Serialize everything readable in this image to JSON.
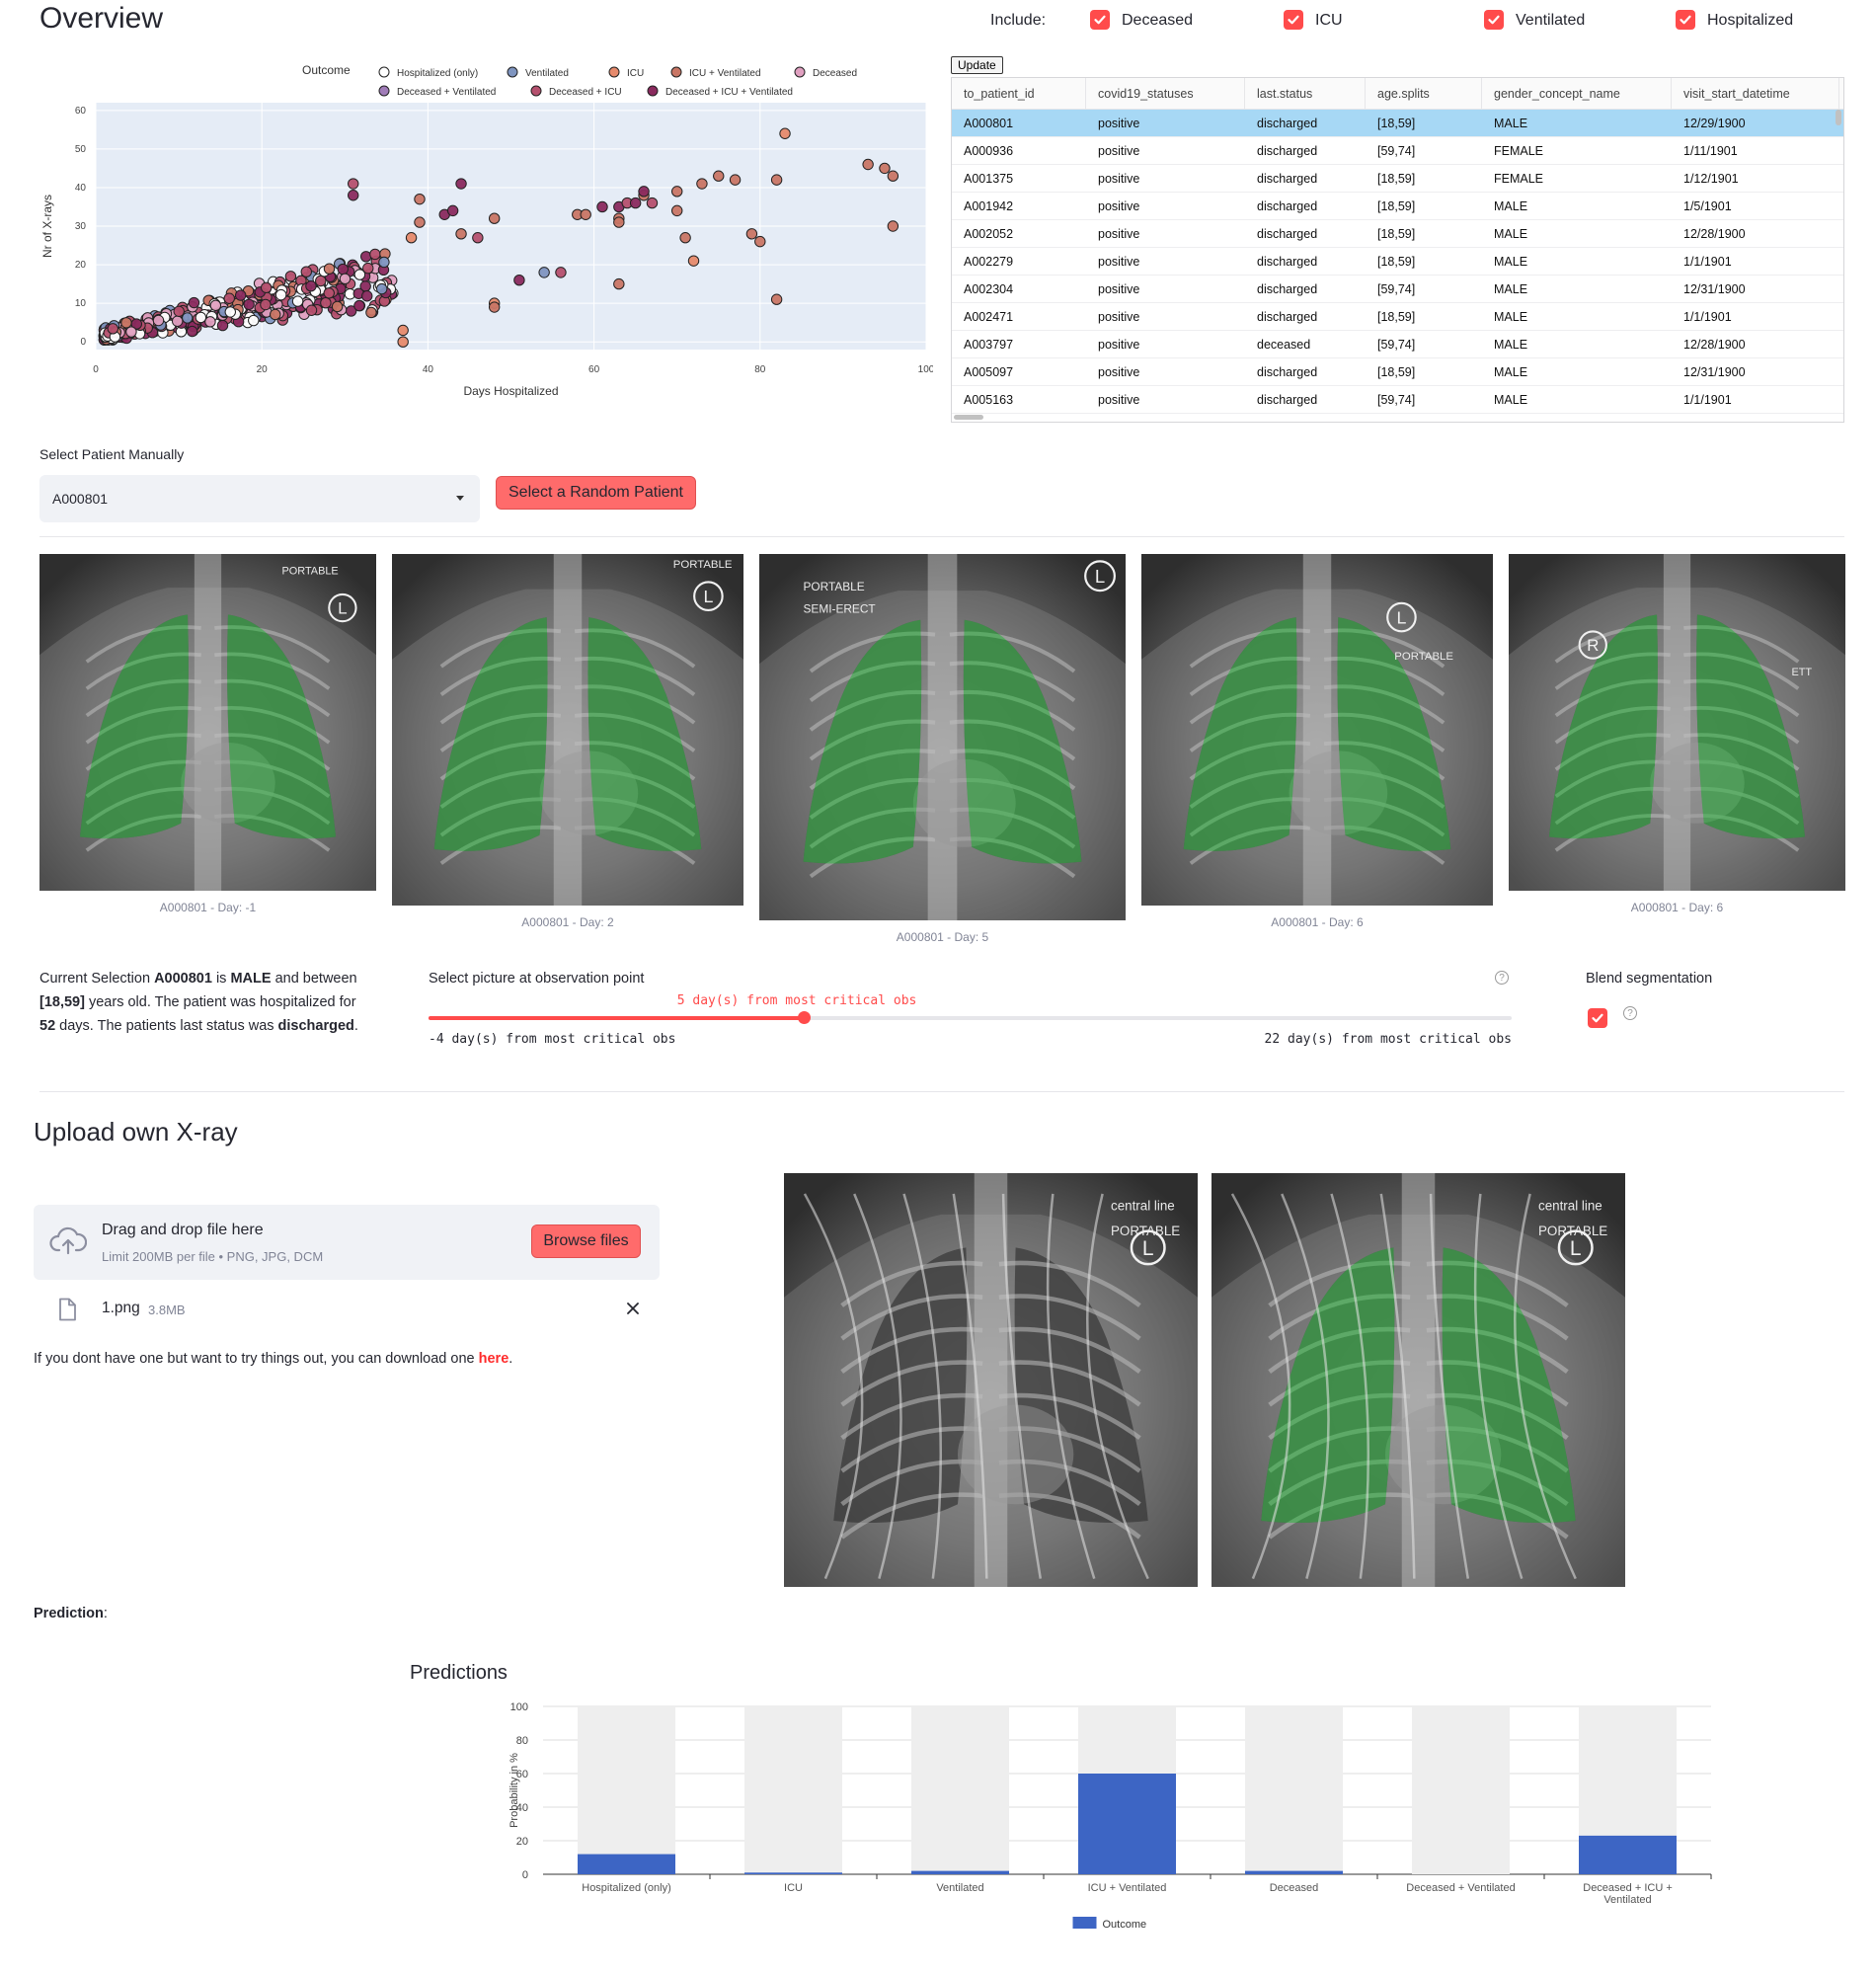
{
  "overview": {
    "title": "Overview",
    "include_label": "Include:",
    "checkboxes": [
      {
        "label": "Deceased",
        "checked": true
      },
      {
        "label": "ICU",
        "checked": true
      },
      {
        "label": "Ventilated",
        "checked": true
      },
      {
        "label": "Hospitalized",
        "checked": true
      }
    ],
    "update_label": "Update"
  },
  "scatter": {
    "legend_title": "Outcome",
    "legend": [
      {
        "name": "Hospitalized (only)",
        "color": "#ffffff"
      },
      {
        "name": "Ventilated",
        "color": "#7f95c0"
      },
      {
        "name": "ICU",
        "color": "#e68a6c"
      },
      {
        "name": "ICU + Ventilated",
        "color": "#c97665"
      },
      {
        "name": "Deceased",
        "color": "#e0a0c0"
      },
      {
        "name": "Deceased + Ventilated",
        "color": "#a07cb8"
      },
      {
        "name": "Deceased + ICU",
        "color": "#b5506e"
      },
      {
        "name": "Deceased + ICU + Ventilated",
        "color": "#8a2a5e"
      }
    ],
    "xlabel": "Days Hospitalized",
    "ylabel": "Nr of X-rays",
    "xticks": [
      0,
      20,
      40,
      60,
      80,
      100
    ],
    "yticks": [
      0,
      10,
      20,
      30,
      40,
      50,
      60
    ],
    "xlim": [
      0,
      100
    ],
    "ylim": [
      -2,
      62
    ]
  },
  "table": {
    "columns": [
      "to_patient_id",
      "covid19_statuses",
      "last.status",
      "age.splits",
      "gender_concept_name",
      "visit_start_datetime"
    ],
    "rows": [
      [
        "A000801",
        "positive",
        "discharged",
        "[18,59]",
        "MALE",
        "12/29/1900"
      ],
      [
        "A000936",
        "positive",
        "discharged",
        "[59,74]",
        "FEMALE",
        "1/11/1901"
      ],
      [
        "A001375",
        "positive",
        "discharged",
        "[18,59]",
        "FEMALE",
        "1/12/1901"
      ],
      [
        "A001942",
        "positive",
        "discharged",
        "[18,59]",
        "MALE",
        "1/5/1901"
      ],
      [
        "A002052",
        "positive",
        "discharged",
        "[18,59]",
        "MALE",
        "12/28/1900"
      ],
      [
        "A002279",
        "positive",
        "discharged",
        "[18,59]",
        "MALE",
        "1/1/1901"
      ],
      [
        "A002304",
        "positive",
        "discharged",
        "[59,74]",
        "MALE",
        "12/31/1900"
      ],
      [
        "A002471",
        "positive",
        "discharged",
        "[18,59]",
        "MALE",
        "1/1/1901"
      ],
      [
        "A003797",
        "positive",
        "deceased",
        "[59,74]",
        "MALE",
        "12/28/1900"
      ],
      [
        "A005097",
        "positive",
        "discharged",
        "[18,59]",
        "MALE",
        "12/31/1900"
      ],
      [
        "A005163",
        "positive",
        "discharged",
        "[59,74]",
        "MALE",
        "1/1/1901"
      ]
    ]
  },
  "patient_select": {
    "label": "Select Patient Manually",
    "value": "A000801",
    "random_label": "Select a Random Patient"
  },
  "xrays": {
    "captions": [
      "A000801 - Day: -1",
      "A000801 - Day: 2",
      "A000801 - Day: 5",
      "A000801 - Day: 6",
      "A000801 - Day: 6"
    ],
    "marks": [
      [
        "PORTABLE",
        "L"
      ],
      [
        "PORTABLE",
        "L"
      ],
      [
        "PORTABLE",
        "SEMI-ERECT",
        "L"
      ],
      [
        "PORTABLE",
        "L"
      ],
      [
        "R",
        "ETT"
      ]
    ]
  },
  "selection": {
    "p1": "Current Selection ",
    "id": "A000801",
    "p2": " is ",
    "gender": "MALE",
    "p3": " and between ",
    "age": "[18,59]",
    "p4": " years old. The patient was hospitalized for ",
    "days": "52",
    "p5": " days. The patients last status was ",
    "status": "discharged",
    "p6": "."
  },
  "slider": {
    "label": "Select picture at observation point",
    "current": "5 day(s) from most critical obs",
    "min_label": "-4 day(s) from most critical obs",
    "max_label": "22 day(s) from most critical obs",
    "min": -4,
    "max": 22,
    "value": 5,
    "help": "?"
  },
  "blend": {
    "label": "Blend segmentation",
    "checked": true,
    "help": "?"
  },
  "upload": {
    "title": "Upload own X-ray",
    "drag_text": "Drag and drop file here",
    "limit_text": "Limit 200MB per file • PNG, JPG, DCM",
    "browse_label": "Browse files",
    "file_name": "1.png",
    "file_size": "3.8MB",
    "hint_pre": "If you dont have one but want to try things out, you can download one ",
    "hint_link": "here",
    "hint_post": ".",
    "image_marks": [
      "central line",
      "L",
      "PORTABLE"
    ]
  },
  "prediction": {
    "label": "Prediction",
    "colon": ":"
  },
  "chart_data": {
    "type": "bar",
    "title": "Predictions",
    "ylabel": "Probability in %",
    "xlabel": "",
    "ylim": [
      0,
      100
    ],
    "yticks": [
      0,
      20,
      40,
      60,
      80,
      100
    ],
    "categories": [
      "Hospitalized (only)",
      "ICU",
      "Ventilated",
      "ICU + Ventilated",
      "Deceased",
      "Deceased + Ventilated",
      "Deceased + ICU + Ventilated"
    ],
    "series": [
      {
        "name": "Outcome",
        "values": [
          12,
          1,
          2,
          60,
          2,
          0,
          23
        ],
        "color": "#3d65c4"
      }
    ],
    "background_values": [
      100,
      100,
      100,
      100,
      100,
      100,
      100
    ],
    "legend_placement": "bottom-center"
  }
}
